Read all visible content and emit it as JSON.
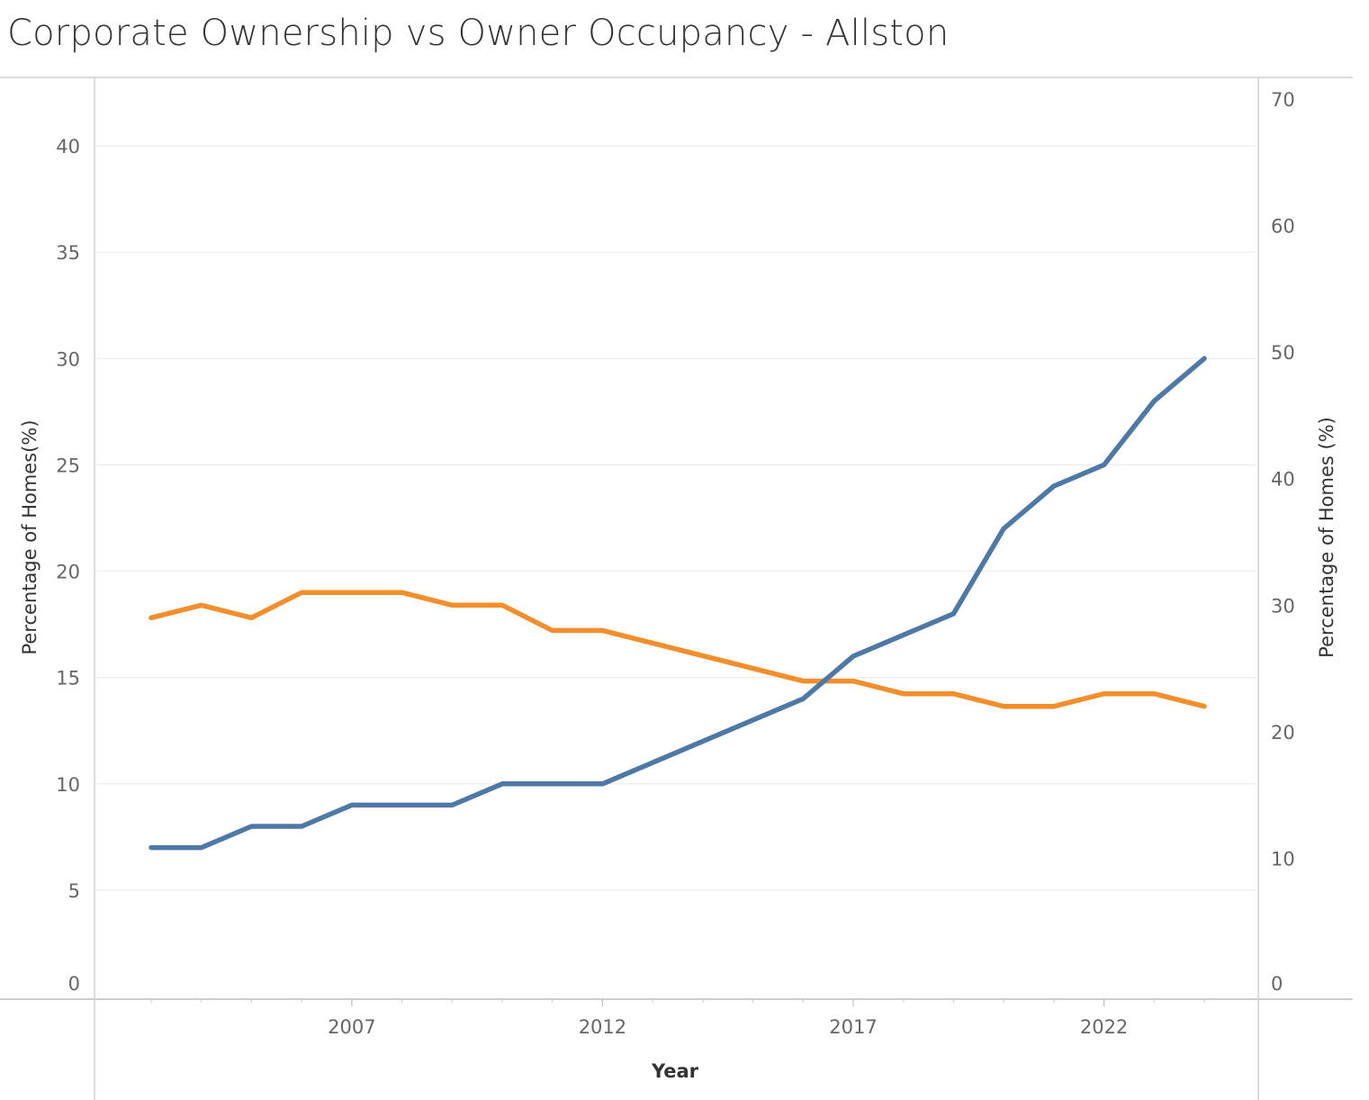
{
  "title": "Corporate Ownership vs Owner Occupancy - Allston",
  "chart_data": {
    "type": "line",
    "title": "Corporate Ownership vs Owner Occupancy - Allston",
    "xlabel": "Year",
    "ylabel_left": "Percentage of Homes(%)",
    "ylabel_right": "Percentage of Homes (%)",
    "x_ticks": [
      "2007",
      "2012",
      "2017",
      "2022"
    ],
    "y_left_ticks": [
      "0",
      "5",
      "10",
      "15",
      "20",
      "25",
      "30",
      "35",
      "40"
    ],
    "y_right_ticks": [
      "0",
      "10",
      "20",
      "30",
      "40",
      "50",
      "60",
      "70"
    ],
    "x": [
      2003,
      2004,
      2005,
      2006,
      2007,
      2008,
      2009,
      2010,
      2011,
      2012,
      2013,
      2014,
      2015,
      2016,
      2017,
      2018,
      2019,
      2020,
      2021,
      2022,
      2023,
      2024
    ],
    "xlim": [
      2002,
      2025
    ],
    "ylim_left": [
      0,
      42.9
    ],
    "ylim_right": [
      0,
      71.1
    ],
    "series": [
      {
        "axis": "left",
        "color": "#4e79a7",
        "x": [
          2003,
          2004,
          2005,
          2006,
          2007,
          2008,
          2009,
          2010,
          2011,
          2012,
          2016,
          2017,
          2019,
          2020,
          2021,
          2022,
          2023,
          2024
        ],
        "values": [
          7,
          7,
          8,
          8,
          9,
          9,
          9,
          10,
          10,
          10,
          14,
          16,
          18,
          22,
          24,
          25,
          28,
          30
        ]
      },
      {
        "axis": "right",
        "color": "#f28e2b",
        "x": [
          2003,
          2004,
          2005,
          2006,
          2007,
          2008,
          2009,
          2010,
          2011,
          2012,
          2016,
          2017,
          2018,
          2019,
          2020,
          2021,
          2022,
          2023,
          2024
        ],
        "values": [
          29,
          30,
          29,
          31,
          31,
          31,
          30,
          30,
          28,
          28,
          24,
          24,
          23,
          23,
          22,
          22,
          23,
          23,
          22
        ]
      }
    ],
    "grid": true
  }
}
